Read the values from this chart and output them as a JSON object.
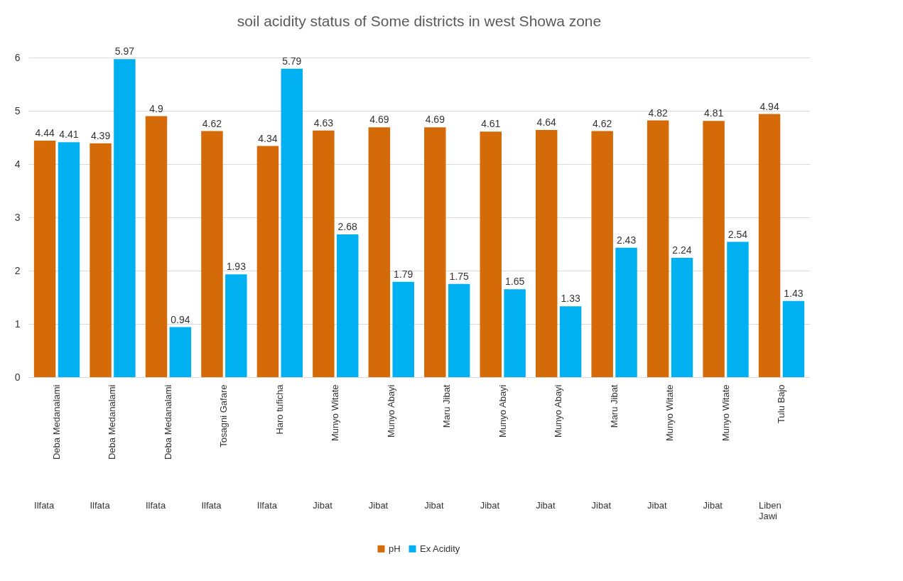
{
  "chart_data": {
    "type": "bar",
    "title": "soil acidity status of Some districts in west Showa zone",
    "categories": [
      "Deba Medanalami",
      "Deba Medanalami",
      "Deba Medanalami",
      "Tosagni Gafare",
      "Haro tuficha",
      "Munyo Witate",
      "Munyo Abayi",
      "Maru Jibat",
      "Munyo Abayi",
      "Munyo Abayi",
      "Maru Jibat",
      "Munyo Witate",
      "Munyo Witate",
      "Tulu Bajo"
    ],
    "annotations": [
      "Ilfata",
      "Ilfata",
      "Ilfata",
      "Ilfata",
      "Ilfata",
      "Jibat",
      "Jibat",
      "Jibat",
      "Jibat",
      "Jibat",
      "Jibat",
      "Jibat",
      "Jibat",
      "Liben Jawi"
    ],
    "series": [
      {
        "name": "pH",
        "color": "#d46b08",
        "values": [
          4.44,
          4.39,
          4.9,
          4.62,
          4.34,
          4.63,
          4.69,
          4.69,
          4.61,
          4.64,
          4.62,
          4.82,
          4.81,
          4.94
        ]
      },
      {
        "name": "Ex Acidity",
        "color": "#00b0f0",
        "values": [
          4.41,
          5.97,
          0.94,
          1.93,
          5.79,
          2.68,
          1.79,
          1.75,
          1.65,
          1.33,
          2.43,
          2.24,
          2.54,
          1.43
        ]
      }
    ],
    "ylim": [
      0,
      6
    ],
    "yticks": [
      0,
      1,
      2,
      3,
      4,
      5,
      6
    ],
    "grid": "y",
    "legend": "bottom",
    "data_labels": true
  }
}
